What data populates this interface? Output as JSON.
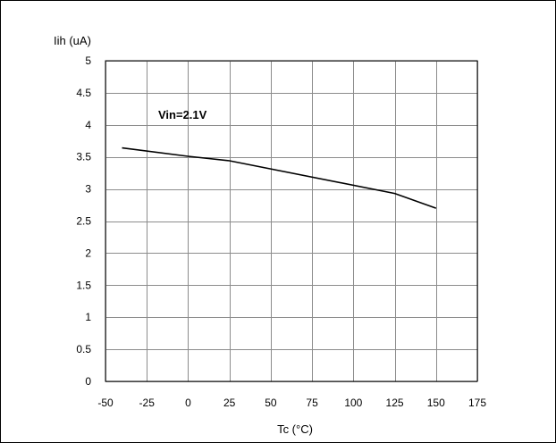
{
  "chart_data": {
    "type": "line",
    "ylabel": "Iih (uA)",
    "xlabel": "Tc (°C)",
    "annotation": "Vin=2.1V",
    "xlim": [
      -50,
      175
    ],
    "ylim": [
      0,
      5
    ],
    "xticks": [
      -50,
      -25,
      0,
      25,
      50,
      75,
      100,
      125,
      150,
      175
    ],
    "yticks": [
      0,
      0.5,
      1,
      1.5,
      2,
      2.5,
      3,
      3.5,
      4,
      4.5,
      5
    ],
    "xtick_labels": [
      "-50",
      "-25",
      "0",
      "25",
      "50",
      "75",
      "100",
      "125",
      "150",
      "175"
    ],
    "ytick_labels": [
      "0",
      "0.5",
      "1",
      "1.5",
      "2",
      "2.5",
      "3",
      "3.5",
      "4",
      "4.5",
      "5"
    ],
    "grid": true,
    "series": [
      {
        "x": [
          -40,
          0,
          25,
          125,
          150
        ],
        "y": [
          3.64,
          3.51,
          3.44,
          2.93,
          2.7
        ]
      }
    ]
  }
}
